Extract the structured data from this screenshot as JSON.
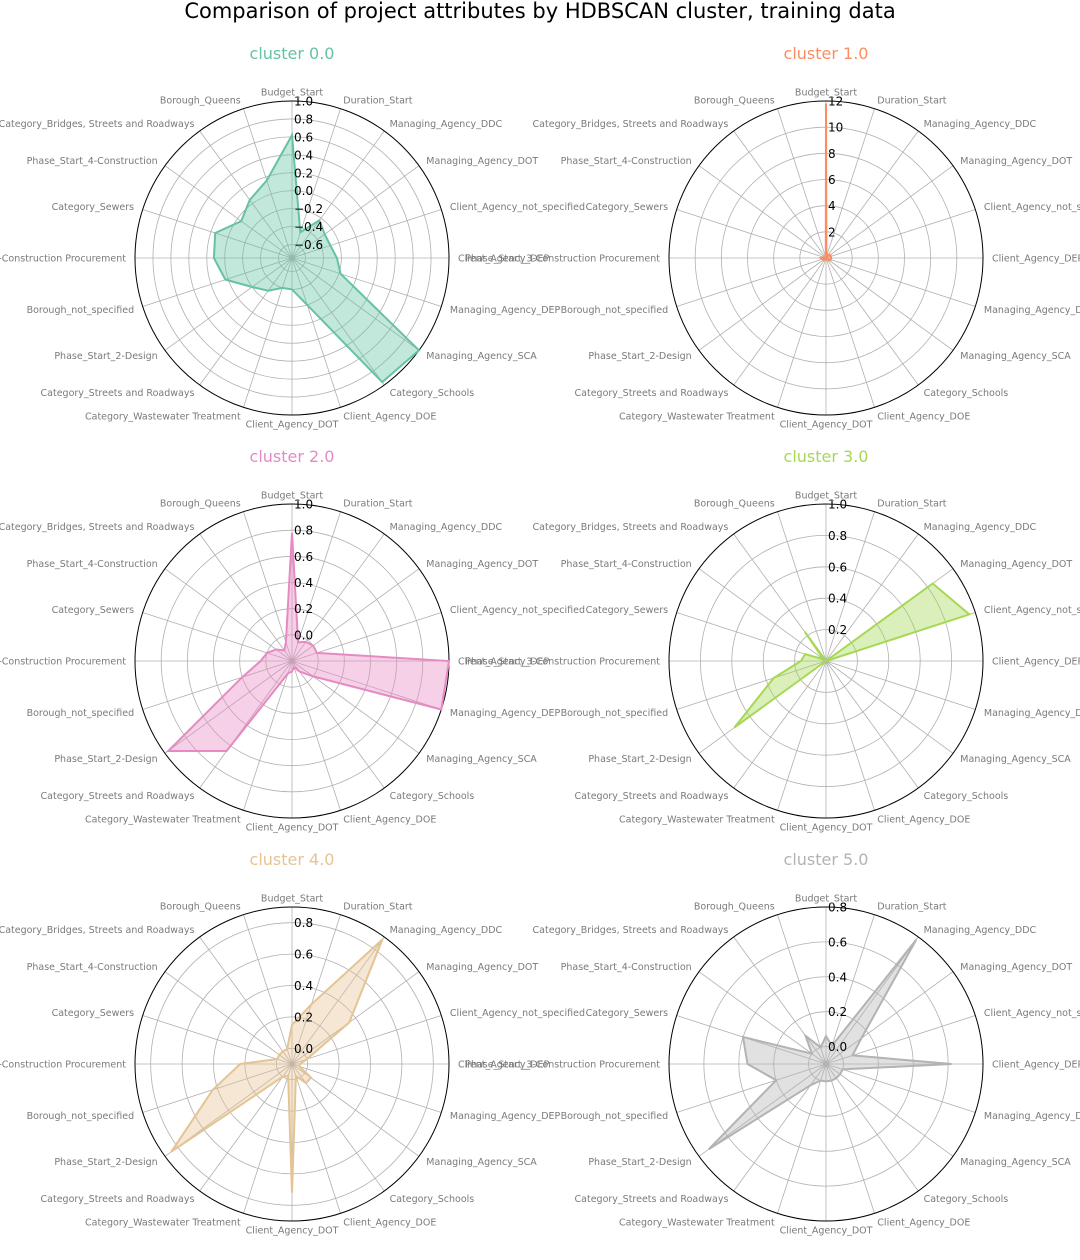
{
  "figure": {
    "title": "Comparison of project attributes by HDBSCAN cluster, training data"
  },
  "chart_data": {
    "type": "radar",
    "axes": [
      "Budget_Start",
      "Duration_Start",
      "Managing_Agency_DDC",
      "Managing_Agency_DOT",
      "Client_Agency_not_specified",
      "Client_Agency_DEP",
      "Managing_Agency_DEP",
      "Managing_Agency_SCA",
      "Category_Schools",
      "Client_Agency_DOE",
      "Client_Agency_DOT",
      "Category_Wastewater Treatment",
      "Category_Streets and Roadways",
      "Phase_Start_2-Design",
      "Borough_not_specified",
      "Phase_Start_3-Construction Procurement",
      "Category_Sewers",
      "Phase_Start_4-Construction",
      "Category_Bridges, Streets and Roadways",
      "Borough_Queens"
    ],
    "panels": [
      {
        "title": "cluster 0.0",
        "color": "#66c2a5",
        "rlim": [
          -0.75,
          1.0
        ],
        "ticks": [
          -0.6,
          -0.4,
          -0.2,
          0.0,
          0.2,
          0.4,
          0.6,
          0.8,
          1.0
        ],
        "tick_labels": [
          "−0.6",
          "−0.4",
          "−0.2",
          "0.0",
          "0.2",
          "0.4",
          "0.6",
          "0.8",
          "1.0"
        ],
        "values": [
          0.62,
          -0.45,
          -0.23,
          -0.3,
          -0.3,
          -0.25,
          -0.18,
          1.0,
          0.96,
          -0.2,
          -0.4,
          -0.4,
          -0.3,
          -0.2,
          0.03,
          0.12,
          0.15,
          -0.05,
          0.05,
          0.16
        ]
      },
      {
        "title": "cluster 1.0",
        "color": "#fc8d62",
        "rlim": [
          0,
          12
        ],
        "ticks": [
          2,
          4,
          6,
          8,
          10,
          12
        ],
        "tick_labels": [
          "2",
          "4",
          "6",
          "8",
          "10",
          "12"
        ],
        "values": [
          11.8,
          0.1,
          0.3,
          0.4,
          0.4,
          0.4,
          0.4,
          0.3,
          0.1,
          0.1,
          0.1,
          0.1,
          0.15,
          0.25,
          0.25,
          0.4,
          0.15,
          0.1,
          0.05,
          0.05
        ]
      },
      {
        "title": "cluster 2.0",
        "color": "#e78ac3",
        "rlim": [
          -0.2,
          1.0
        ],
        "ticks": [
          0.0,
          0.2,
          0.4,
          0.6,
          0.8,
          1.0
        ],
        "tick_labels": [
          "0.0",
          "0.2",
          "0.4",
          "0.6",
          "0.8",
          "1.0"
        ],
        "values": [
          0.78,
          -0.05,
          -0.02,
          0.0,
          0.0,
          1.0,
          1.0,
          0.0,
          -0.1,
          -0.15,
          -0.12,
          -0.1,
          0.65,
          0.97,
          0.2,
          0.04,
          0.0,
          -0.05,
          -0.1,
          -0.05
        ]
      },
      {
        "title": "cluster 3.0",
        "color": "#a6d854",
        "rlim": [
          0,
          1.0
        ],
        "ticks": [
          0.2,
          0.4,
          0.6,
          0.8,
          1.0
        ],
        "tick_labels": [
          "0.2",
          "0.4",
          "0.6",
          "0.8",
          "1.0"
        ],
        "values": [
          0.0,
          0.0,
          0.0,
          0.84,
          0.96,
          0.0,
          0.0,
          0.0,
          0.0,
          0.0,
          0.0,
          0.0,
          0.0,
          0.72,
          0.35,
          0.16,
          0.14,
          0.02,
          0.23,
          0.0
        ]
      },
      {
        "title": "cluster 4.0",
        "color": "#e5c494",
        "rlim": [
          -0.1,
          0.9
        ],
        "ticks": [
          0.0,
          0.2,
          0.4,
          0.6,
          0.8
        ],
        "tick_labels": [
          "0.0",
          "0.2",
          "0.4",
          "0.6",
          "0.8"
        ],
        "values": [
          0.15,
          0.3,
          0.88,
          0.35,
          0.0,
          -0.05,
          -0.05,
          0.05,
          0.05,
          -0.02,
          0.72,
          -0.02,
          0.0,
          0.85,
          0.43,
          0.23,
          0.0,
          0.0,
          0.0,
          0.0
        ]
      },
      {
        "title": "cluster 5.0",
        "color": "#b3b3b3",
        "rlim": [
          -0.1,
          0.8
        ],
        "ticks": [
          0.0,
          0.2,
          0.4,
          0.6,
          0.8
        ],
        "tick_labels": [
          "0.0",
          "0.2",
          "0.4",
          "0.6",
          "0.8"
        ],
        "values": [
          0.06,
          0.01,
          0.78,
          0.15,
          0.06,
          0.62,
          0.0,
          0.0,
          0.0,
          0.0,
          0.0,
          0.0,
          0.05,
          0.73,
          0.2,
          0.35,
          0.4,
          0.0,
          0.1,
          0.0
        ]
      }
    ]
  }
}
